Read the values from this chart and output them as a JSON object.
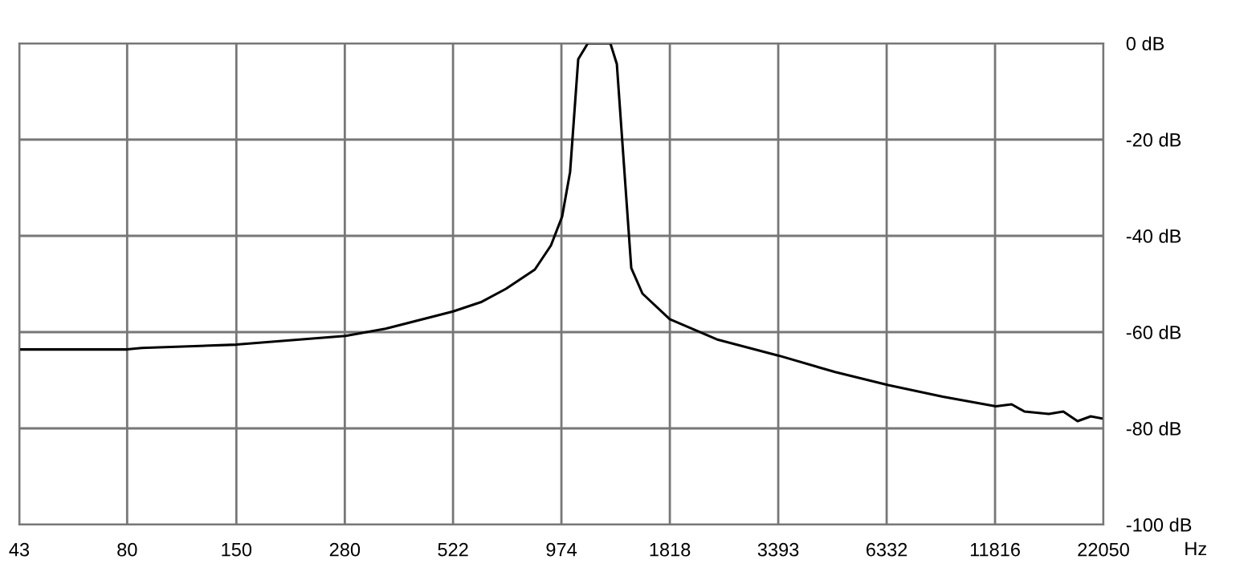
{
  "chart_data": {
    "type": "line",
    "xlabel": "Hz",
    "log": "x",
    "x": [
      43,
      80,
      87,
      150,
      281,
      354,
      522,
      616,
      708,
      836,
      917,
      978,
      1024,
      1073,
      1134,
      1291,
      1340,
      1456,
      1553,
      1817,
      2399,
      3407,
      4708,
      6386,
      8746,
      11868,
      13000,
      14000,
      16104,
      17500,
      19000,
      20500,
      22050
    ],
    "series": [
      {
        "color": "#000000",
        "values": [
          -63.6,
          -63.6,
          -63.3,
          -62.6,
          -60.8,
          -59.3,
          -55.7,
          -53.7,
          -51,
          -47,
          -42,
          -36,
          -26.7,
          -3.3,
          0,
          0,
          -4.3,
          -46.7,
          -52,
          -57.3,
          -61.6,
          -64.9,
          -68.3,
          -71,
          -73.4,
          -75.4,
          -75,
          -76.5,
          -77,
          -76.5,
          -78.5,
          -77.5,
          -78
        ]
      }
    ],
    "xlim": [
      43,
      22050
    ],
    "xticks": [
      43,
      80,
      150,
      280,
      522,
      974,
      1818,
      3393,
      6332,
      11816,
      22050
    ],
    "ylim": [
      -100,
      0
    ],
    "yticks": [
      {
        "value": -100,
        "label": "-100 dB"
      },
      {
        "value": -80,
        "label": "-80 dB"
      },
      {
        "value": -60,
        "label": "-60 dB"
      },
      {
        "value": -40,
        "label": "-40 dB"
      },
      {
        "value": -20,
        "label": "-20 dB"
      },
      {
        "value": 0,
        "label": "0 dB"
      }
    ],
    "grid": true,
    "legend": false
  }
}
